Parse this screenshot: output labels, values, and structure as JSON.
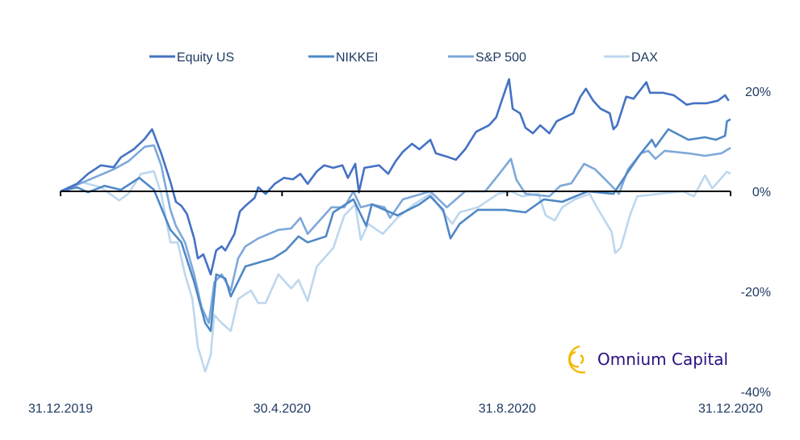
{
  "chart_data": {
    "type": "line",
    "title": "",
    "xlabel": "",
    "ylabel": "",
    "x_unit": "days since 31.12.2019",
    "xlim": [
      0,
      366
    ],
    "ylim": [
      -40,
      20
    ],
    "x_ticks": [
      {
        "day": 0,
        "label": "31.12.2019"
      },
      {
        "day": 121,
        "label": "30.4.2020"
      },
      {
        "day": 244,
        "label": "31.8.2020"
      },
      {
        "day": 366,
        "label": "31.12.2020"
      }
    ],
    "y_ticks": [
      {
        "value": 20,
        "label": "20%"
      },
      {
        "value": 0,
        "label": "0%"
      },
      {
        "value": -20,
        "label": "-20%"
      },
      {
        "value": -40,
        "label": "-40%"
      }
    ],
    "legend_position": "top",
    "series": [
      {
        "name": "Equity US",
        "color": "#4472c4",
        "points": [
          [
            0,
            0
          ],
          [
            9,
            1.5
          ],
          [
            15,
            3.5
          ],
          [
            22,
            5.2
          ],
          [
            29,
            4.8
          ],
          [
            33,
            6.8
          ],
          [
            40,
            8.4
          ],
          [
            46,
            10.5
          ],
          [
            50,
            12.4
          ],
          [
            55,
            7.6
          ],
          [
            60,
            1.9
          ],
          [
            63,
            -2.1
          ],
          [
            66,
            -2.9
          ],
          [
            69,
            -4.5
          ],
          [
            73,
            -9.4
          ],
          [
            75,
            -13.4
          ],
          [
            78,
            -12.6
          ],
          [
            82,
            -16.6
          ],
          [
            85,
            -11.8
          ],
          [
            88,
            -11.0
          ],
          [
            90,
            -11.8
          ],
          [
            95,
            -8.5
          ],
          [
            98,
            -4.0
          ],
          [
            101,
            -2.9
          ],
          [
            106,
            -1.3
          ],
          [
            108,
            0.8
          ],
          [
            112,
            -0.5
          ],
          [
            117,
            1.5
          ],
          [
            122,
            2.7
          ],
          [
            127,
            2.4
          ],
          [
            131,
            3.5
          ],
          [
            135,
            1.5
          ],
          [
            140,
            4.0
          ],
          [
            144,
            5.2
          ],
          [
            149,
            4.7
          ],
          [
            154,
            5.2
          ],
          [
            157,
            2.7
          ],
          [
            161,
            5.5
          ],
          [
            163,
            -0.2
          ],
          [
            166,
            4.7
          ],
          [
            174,
            5.2
          ],
          [
            179,
            3.5
          ],
          [
            183,
            6.0
          ],
          [
            187,
            7.9
          ],
          [
            192,
            9.5
          ],
          [
            196,
            8.4
          ],
          [
            202,
            10.3
          ],
          [
            205,
            7.6
          ],
          [
            212,
            6.8
          ],
          [
            216,
            6.3
          ],
          [
            221,
            8.4
          ],
          [
            227,
            11.9
          ],
          [
            234,
            13.2
          ],
          [
            238,
            14.8
          ],
          [
            241,
            18.1
          ],
          [
            245,
            22.4
          ],
          [
            247,
            16.5
          ],
          [
            251,
            15.6
          ],
          [
            254,
            12.7
          ],
          [
            258,
            11.6
          ],
          [
            262,
            13.2
          ],
          [
            267,
            11.6
          ],
          [
            271,
            14.0
          ],
          [
            280,
            15.6
          ],
          [
            284,
            18.9
          ],
          [
            287,
            20.5
          ],
          [
            291,
            18.1
          ],
          [
            295,
            16.5
          ],
          [
            300,
            15.6
          ],
          [
            302,
            12.4
          ],
          [
            304,
            13.2
          ],
          [
            309,
            18.9
          ],
          [
            313,
            18.5
          ],
          [
            320,
            21.8
          ],
          [
            322,
            19.7
          ],
          [
            329,
            19.7
          ],
          [
            335,
            19.2
          ],
          [
            342,
            17.3
          ],
          [
            346,
            17.6
          ],
          [
            353,
            17.6
          ],
          [
            359,
            18.1
          ],
          [
            363,
            19.2
          ],
          [
            365,
            18.1
          ]
        ]
      },
      {
        "name": "NIKKEI",
        "color": "#4f88c6",
        "points": [
          [
            0,
            0
          ],
          [
            9,
            0.8
          ],
          [
            15,
            -0.2
          ],
          [
            24,
            1.1
          ],
          [
            33,
            0.3
          ],
          [
            43,
            2.7
          ],
          [
            51,
            0.3
          ],
          [
            60,
            -7.7
          ],
          [
            66,
            -10.2
          ],
          [
            73,
            -18.1
          ],
          [
            79,
            -26.3
          ],
          [
            82,
            -27.9
          ],
          [
            85,
            -16.6
          ],
          [
            90,
            -17.4
          ],
          [
            93,
            -21.0
          ],
          [
            101,
            -15.0
          ],
          [
            116,
            -13.4
          ],
          [
            123,
            -11.8
          ],
          [
            130,
            -9.0
          ],
          [
            135,
            -10.2
          ],
          [
            145,
            -9.0
          ],
          [
            149,
            -4.2
          ],
          [
            160,
            -1.6
          ],
          [
            167,
            -6.9
          ],
          [
            170,
            -2.6
          ],
          [
            184,
            -4.8
          ],
          [
            196,
            -2.6
          ],
          [
            202,
            -1.0
          ],
          [
            209,
            -3.7
          ],
          [
            213,
            -9.4
          ],
          [
            218,
            -6.5
          ],
          [
            228,
            -3.7
          ],
          [
            243,
            -3.7
          ],
          [
            254,
            -4.2
          ],
          [
            264,
            -1.6
          ],
          [
            274,
            -2.1
          ],
          [
            288,
            0
          ],
          [
            302,
            -0.5
          ],
          [
            310,
            3.9
          ],
          [
            317,
            7.6
          ],
          [
            323,
            10.3
          ],
          [
            325,
            8.9
          ],
          [
            332,
            12.4
          ],
          [
            343,
            10.3
          ],
          [
            352,
            10.8
          ],
          [
            358,
            10.3
          ],
          [
            363,
            11.1
          ],
          [
            364,
            14.0
          ],
          [
            366,
            14.4
          ]
        ]
      },
      {
        "name": "S&P 500",
        "color": "#7ea8da",
        "points": [
          [
            0,
            0
          ],
          [
            11,
            1.6
          ],
          [
            29,
            4.4
          ],
          [
            37,
            6.0
          ],
          [
            46,
            8.9
          ],
          [
            51,
            9.2
          ],
          [
            55,
            5.2
          ],
          [
            60,
            -3.7
          ],
          [
            63,
            -6.9
          ],
          [
            68,
            -10.2
          ],
          [
            73,
            -16.6
          ],
          [
            77,
            -23.1
          ],
          [
            81,
            -26.3
          ],
          [
            84,
            -18.2
          ],
          [
            88,
            -16.6
          ],
          [
            93,
            -19.8
          ],
          [
            97,
            -13.4
          ],
          [
            101,
            -11.0
          ],
          [
            108,
            -9.4
          ],
          [
            119,
            -7.7
          ],
          [
            126,
            -7.4
          ],
          [
            131,
            -5.3
          ],
          [
            135,
            -8.5
          ],
          [
            148,
            -3.2
          ],
          [
            155,
            -3.2
          ],
          [
            160,
            0
          ],
          [
            164,
            -3.2
          ],
          [
            170,
            -2.6
          ],
          [
            177,
            -3.2
          ],
          [
            180,
            -5.3
          ],
          [
            187,
            -1.6
          ],
          [
            202,
            0
          ],
          [
            211,
            -3.2
          ],
          [
            221,
            0
          ],
          [
            232,
            0
          ],
          [
            239,
            3.2
          ],
          [
            246,
            6.5
          ],
          [
            249,
            2.3
          ],
          [
            254,
            -0.5
          ],
          [
            267,
            -1.0
          ],
          [
            273,
            1.1
          ],
          [
            279,
            1.6
          ],
          [
            286,
            5.5
          ],
          [
            292,
            4.4
          ],
          [
            301,
            1.1
          ],
          [
            305,
            -0.5
          ],
          [
            310,
            4.4
          ],
          [
            317,
            7.6
          ],
          [
            321,
            8.1
          ],
          [
            325,
            6.5
          ],
          [
            330,
            8.1
          ],
          [
            343,
            7.6
          ],
          [
            352,
            7.1
          ],
          [
            361,
            7.6
          ],
          [
            366,
            8.7
          ]
        ]
      },
      {
        "name": "DAX",
        "color": "#bdd7ee",
        "points": [
          [
            0,
            0
          ],
          [
            11,
            1.9
          ],
          [
            22,
            0.8
          ],
          [
            32,
            -1.8
          ],
          [
            37,
            -0.5
          ],
          [
            44,
            3.5
          ],
          [
            51,
            4.0
          ],
          [
            55,
            -0.5
          ],
          [
            60,
            -10.2
          ],
          [
            64,
            -10.2
          ],
          [
            68,
            -16.6
          ],
          [
            72,
            -21.5
          ],
          [
            75,
            -31.1
          ],
          [
            77,
            -33.5
          ],
          [
            79,
            -36.0
          ],
          [
            82,
            -32.7
          ],
          [
            84,
            -24.7
          ],
          [
            88,
            -26.3
          ],
          [
            93,
            -27.9
          ],
          [
            97,
            -21.5
          ],
          [
            104,
            -19.8
          ],
          [
            108,
            -22.3
          ],
          [
            112,
            -22.3
          ],
          [
            119,
            -16.6
          ],
          [
            126,
            -19.4
          ],
          [
            130,
            -17.7
          ],
          [
            135,
            -21.9
          ],
          [
            140,
            -15.0
          ],
          [
            149,
            -11.3
          ],
          [
            155,
            -4.8
          ],
          [
            161,
            -2.6
          ],
          [
            164,
            -9.7
          ],
          [
            168,
            -6.5
          ],
          [
            176,
            -8.5
          ],
          [
            184,
            -5.3
          ],
          [
            193,
            -2.6
          ],
          [
            202,
            -0.5
          ],
          [
            208,
            -3.7
          ],
          [
            214,
            -6.5
          ],
          [
            218,
            -4.2
          ],
          [
            228,
            -3.2
          ],
          [
            239,
            -0.5
          ],
          [
            246,
            0
          ],
          [
            252,
            -1.0
          ],
          [
            261,
            -0.5
          ],
          [
            265,
            -4.8
          ],
          [
            270,
            -5.8
          ],
          [
            274,
            -3.2
          ],
          [
            281,
            -1.6
          ],
          [
            289,
            -0.5
          ],
          [
            293,
            -3.2
          ],
          [
            301,
            -8.1
          ],
          [
            303,
            -12.3
          ],
          [
            306,
            -11.3
          ],
          [
            311,
            -4.8
          ],
          [
            315,
            -1.0
          ],
          [
            327,
            -0.5
          ],
          [
            340,
            0
          ],
          [
            346,
            -1.0
          ],
          [
            352,
            3.2
          ],
          [
            356,
            0.6
          ],
          [
            364,
            3.9
          ],
          [
            366,
            3.5
          ]
        ]
      }
    ]
  },
  "logo": {
    "text": "Omnium Capital",
    "color": "#2b0f80",
    "ring_color": "#f5b800"
  }
}
